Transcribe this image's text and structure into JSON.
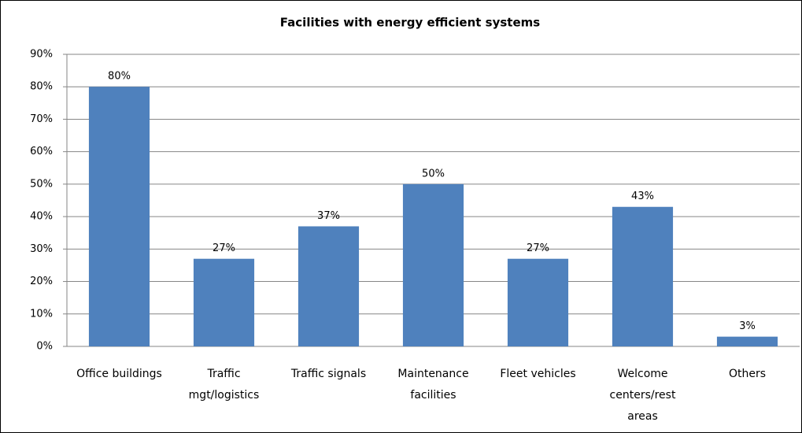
{
  "chart_data": {
    "type": "bar",
    "title": "Facilities with energy efficient systems",
    "categories": [
      "Office buildings",
      "Traffic mgt/logistics",
      "Traffic signals",
      "Maintenance facilities",
      "Fleet vehicles",
      "Welcome centers/rest areas",
      "Others"
    ],
    "values": [
      80,
      27,
      37,
      50,
      27,
      43,
      3
    ],
    "value_labels": [
      "80%",
      "27%",
      "37%",
      "50%",
      "27%",
      "43%",
      "3%"
    ],
    "color": "#4f81bd",
    "ylim": [
      0,
      90
    ],
    "yticks": [
      {
        "value": 0,
        "label": "0%"
      },
      {
        "value": 10,
        "label": "10%"
      },
      {
        "value": 20,
        "label": "20%"
      },
      {
        "value": 30,
        "label": "30%"
      },
      {
        "value": 40,
        "label": "40%"
      },
      {
        "value": 50,
        "label": "50%"
      },
      {
        "value": 60,
        "label": "60%"
      },
      {
        "value": 70,
        "label": "70%"
      },
      {
        "value": 80,
        "label": "80%"
      },
      {
        "value": 90,
        "label": "90%"
      }
    ],
    "grid": true
  }
}
